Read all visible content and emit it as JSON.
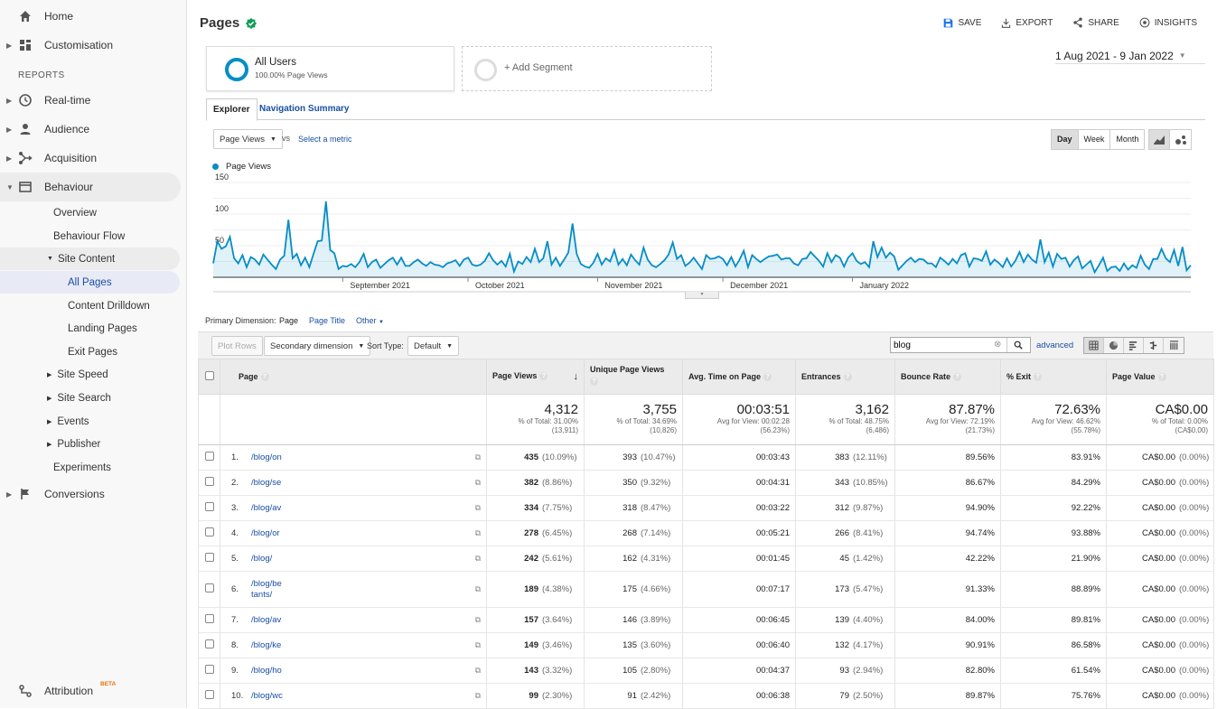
{
  "sidebar": {
    "home": "Home",
    "customisation": "Customisation",
    "reports_header": "REPORTS",
    "realtime": "Real-time",
    "audience": "Audience",
    "acquisition": "Acquisition",
    "behaviour": "Behaviour",
    "overview": "Overview",
    "behaviour_flow": "Behaviour Flow",
    "site_content": "Site Content",
    "all_pages": "All Pages",
    "content_drilldown": "Content Drilldown",
    "landing_pages": "Landing Pages",
    "exit_pages": "Exit Pages",
    "site_speed": "Site Speed",
    "site_search": "Site Search",
    "events": "Events",
    "publisher": "Publisher",
    "experiments": "Experiments",
    "conversions": "Conversions",
    "attribution": "Attribution",
    "beta": "BETA"
  },
  "header": {
    "title": "Pages",
    "save": "SAVE",
    "export": "EXPORT",
    "share": "SHARE",
    "insights": "INSIGHTS"
  },
  "segment": {
    "name": "All Users",
    "sub": "100.00% Page Views",
    "add": "+ Add Segment",
    "date_range": "1 Aug 2021 - 9 Jan 2022"
  },
  "tabs": {
    "explorer": "Explorer",
    "nav_summary": "Navigation Summary"
  },
  "chart_controls": {
    "metric": "Page Views",
    "vs": "vs",
    "select_metric": "Select a metric",
    "day": "Day",
    "week": "Week",
    "month": "Month"
  },
  "chart_data": {
    "type": "line",
    "legend": "Page Views",
    "ylim": [
      0,
      150
    ],
    "yticks": [
      "150",
      "100",
      "50"
    ],
    "xticks": [
      "September 2021",
      "October 2021",
      "November 2021",
      "December 2021",
      "January 2022"
    ],
    "color": "#058dc7",
    "values": [
      22,
      57,
      45,
      49,
      64,
      30,
      22,
      35,
      16,
      32,
      28,
      20,
      36,
      28,
      20,
      13,
      28,
      34,
      91,
      30,
      37,
      19,
      31,
      16,
      37,
      57,
      58,
      120,
      43,
      38,
      13,
      18,
      17,
      21,
      16,
      24,
      37,
      16,
      24,
      28,
      15,
      21,
      27,
      31,
      20,
      31,
      18,
      18,
      24,
      28,
      22,
      18,
      24,
      20,
      19,
      16,
      22,
      24,
      27,
      18,
      28,
      31,
      20,
      18,
      20,
      26,
      38,
      27,
      20,
      26,
      17,
      37,
      9,
      25,
      21,
      32,
      24,
      45,
      24,
      30,
      57,
      20,
      31,
      18,
      28,
      39,
      85,
      37,
      21,
      17,
      15,
      23,
      37,
      20,
      30,
      25,
      43,
      20,
      29,
      19,
      36,
      27,
      20,
      47,
      28,
      19,
      16,
      21,
      27,
      36,
      55,
      29,
      35,
      18,
      23,
      31,
      22,
      13,
      35,
      29,
      30,
      33,
      29,
      19,
      32,
      17,
      28,
      42,
      16,
      35,
      29,
      24,
      29,
      33,
      34,
      36,
      28,
      30,
      30,
      22,
      19,
      29,
      30,
      40,
      33,
      26,
      17,
      38,
      24,
      35,
      31,
      17,
      31,
      38,
      26,
      21,
      24,
      16,
      57,
      32,
      47,
      31,
      39,
      33,
      12,
      19,
      26,
      31,
      24,
      29,
      28,
      22,
      22,
      16,
      31,
      26,
      20,
      29,
      22,
      35,
      38,
      17,
      30,
      29,
      26,
      41,
      20,
      28,
      23,
      16,
      30,
      17,
      26,
      40,
      24,
      36,
      28,
      23,
      60,
      24,
      39,
      17,
      37,
      29,
      31,
      17,
      27,
      33,
      14,
      20,
      26,
      8,
      19,
      31,
      10,
      16,
      17,
      10,
      22,
      12,
      19,
      15,
      34,
      20,
      13,
      29,
      29,
      45,
      30,
      24,
      43,
      18,
      48,
      11,
      19
    ]
  },
  "table_toolbar": {
    "primary_dimension": "Primary Dimension:",
    "page": "Page",
    "page_title": "Page Title",
    "other": "Other",
    "plot_rows": "Plot Rows",
    "secondary_dimension": "Secondary dimension",
    "sort_type": "Sort Type:",
    "default": "Default",
    "search_value": "blog",
    "advanced": "advanced"
  },
  "table": {
    "columns": [
      "Page",
      "Page Views",
      "Unique Page Views",
      "Avg. Time on Page",
      "Entrances",
      "Bounce Rate",
      "% Exit",
      "Page Value"
    ],
    "totals": [
      {
        "big": "4,312",
        "l1": "% of Total: 31.00%",
        "l2": "(13,911)"
      },
      {
        "big": "3,755",
        "l1": "% of Total: 34.69%",
        "l2": "(10,826)"
      },
      {
        "big": "00:03:51",
        "l1": "Avg for View: 00:02:28",
        "l2": "(56.23%)"
      },
      {
        "big": "3,162",
        "l1": "% of Total: 48.75%",
        "l2": "(6,486)"
      },
      {
        "big": "87.87%",
        "l1": "Avg for View: 72.19%",
        "l2": "(21.73%)"
      },
      {
        "big": "72.63%",
        "l1": "Avg for View: 46.62%",
        "l2": "(55.78%)"
      },
      {
        "big": "CA$0.00",
        "l1": "% of Total: 0.00%",
        "l2": "(CA$0.00)"
      }
    ],
    "rows": [
      {
        "n": "1.",
        "page": "/blog/on",
        "pv": "435",
        "pvp": "(10.09%)",
        "upv": "393",
        "upvp": "(10.47%)",
        "time": "00:03:43",
        "ent": "383",
        "entp": "(12.11%)",
        "bounce": "89.56%",
        "exit": "83.91%",
        "val": "CA$0.00",
        "valp": "(0.00%)"
      },
      {
        "n": "2.",
        "page": "/blog/se",
        "pv": "382",
        "pvp": "(8.86%)",
        "upv": "350",
        "upvp": "(9.32%)",
        "time": "00:04:31",
        "ent": "343",
        "entp": "(10.85%)",
        "bounce": "86.67%",
        "exit": "84.29%",
        "val": "CA$0.00",
        "valp": "(0.00%)"
      },
      {
        "n": "3.",
        "page": "/blog/av",
        "pv": "334",
        "pvp": "(7.75%)",
        "upv": "318",
        "upvp": "(8.47%)",
        "time": "00:03:22",
        "ent": "312",
        "entp": "(9.87%)",
        "bounce": "94.90%",
        "exit": "92.22%",
        "val": "CA$0.00",
        "valp": "(0.00%)"
      },
      {
        "n": "4.",
        "page": "/blog/or",
        "pv": "278",
        "pvp": "(6.45%)",
        "upv": "268",
        "upvp": "(7.14%)",
        "time": "00:05:21",
        "ent": "266",
        "entp": "(8.41%)",
        "bounce": "94.74%",
        "exit": "93.88%",
        "val": "CA$0.00",
        "valp": "(0.00%)"
      },
      {
        "n": "5.",
        "page": "/blog/",
        "pv": "242",
        "pvp": "(5.61%)",
        "upv": "162",
        "upvp": "(4.31%)",
        "time": "00:01:45",
        "ent": "45",
        "entp": "(1.42%)",
        "bounce": "42.22%",
        "exit": "21.90%",
        "val": "CA$0.00",
        "valp": "(0.00%)"
      },
      {
        "n": "6.",
        "page": "/blog/be",
        "page2": "tants/",
        "pv": "189",
        "pvp": "(4.38%)",
        "upv": "175",
        "upvp": "(4.66%)",
        "time": "00:07:17",
        "ent": "173",
        "entp": "(5.47%)",
        "bounce": "91.33%",
        "exit": "88.89%",
        "val": "CA$0.00",
        "valp": "(0.00%)"
      },
      {
        "n": "7.",
        "page": "/blog/av",
        "pv": "157",
        "pvp": "(3.64%)",
        "upv": "146",
        "upvp": "(3.89%)",
        "time": "00:06:45",
        "ent": "139",
        "entp": "(4.40%)",
        "bounce": "84.00%",
        "exit": "89.81%",
        "val": "CA$0.00",
        "valp": "(0.00%)"
      },
      {
        "n": "8.",
        "page": "/blog/ke",
        "pv": "149",
        "pvp": "(3.46%)",
        "upv": "135",
        "upvp": "(3.60%)",
        "time": "00:06:40",
        "ent": "132",
        "entp": "(4.17%)",
        "bounce": "90.91%",
        "exit": "86.58%",
        "val": "CA$0.00",
        "valp": "(0.00%)"
      },
      {
        "n": "9.",
        "page": "/blog/ho",
        "pv": "143",
        "pvp": "(3.32%)",
        "upv": "105",
        "upvp": "(2.80%)",
        "time": "00:04:37",
        "ent": "93",
        "entp": "(2.94%)",
        "bounce": "82.80%",
        "exit": "61.54%",
        "val": "CA$0.00",
        "valp": "(0.00%)"
      },
      {
        "n": "10.",
        "page": "/blog/wc",
        "pv": "99",
        "pvp": "(2.30%)",
        "upv": "91",
        "upvp": "(2.42%)",
        "time": "00:06:38",
        "ent": "79",
        "entp": "(2.50%)",
        "bounce": "89.87%",
        "exit": "75.76%",
        "val": "CA$0.00",
        "valp": "(0.00%)"
      }
    ]
  }
}
